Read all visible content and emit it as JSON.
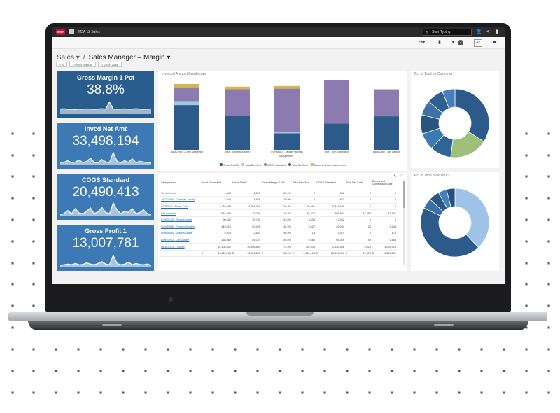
{
  "app": {
    "logo_text": "infor",
    "title": "M3A 12 Sales",
    "search_placeholder": "Start Typing"
  },
  "toolbar": {
    "filter_count": "2"
  },
  "breadcrumb": {
    "root": "Sales",
    "current": "Sales Manager – Margin"
  },
  "filters": [
    "< 5",
    "< Invcd Net Amt",
    "< 2019, 2018"
  ],
  "kpis": [
    {
      "title": "Gross Margin 1 Pct",
      "value": "38.8%",
      "color": "#2a5d8f",
      "spark": [
        0.3,
        0.32,
        0.28,
        0.3,
        0.27,
        0.3,
        0.29,
        0.31,
        0.3,
        0.28,
        0.3,
        0.32,
        0.3,
        0.85,
        0.3,
        0.28,
        0.3,
        0.31,
        0.29,
        0.3,
        0.32,
        0.3,
        0.28,
        0.3,
        0.3
      ]
    },
    {
      "title": "Invcd Net Amt",
      "value": "33,498,194",
      "color": "#3d7ab5",
      "spark": [
        0.1,
        0.12,
        0.25,
        0.1,
        0.15,
        0.3,
        0.1,
        0.2,
        0.45,
        0.12,
        0.1,
        0.35,
        0.15,
        0.1,
        0.9,
        0.2,
        0.1,
        0.25,
        0.12,
        0.4,
        0.1,
        0.2,
        0.15,
        0.1,
        0.1
      ]
    },
    {
      "title": "COGS Standard",
      "value": "20,490,413",
      "color": "#3d7ab5",
      "spark": [
        0.05,
        0.1,
        0.35,
        0.1,
        0.5,
        0.15,
        0.1,
        0.3,
        0.55,
        0.1,
        0.25,
        0.6,
        0.2,
        0.1,
        0.95,
        0.4,
        0.1,
        0.3,
        0.2,
        0.5,
        0.1,
        0.2,
        0.4,
        0.1,
        0.05
      ]
    },
    {
      "title": "Gross Profit 1",
      "value": "13,007,781",
      "color": "#3d7ab5",
      "spark": [
        0.05,
        0.1,
        0.15,
        0.1,
        0.2,
        0.1,
        0.12,
        0.25,
        0.15,
        0.1,
        0.2,
        0.35,
        0.15,
        0.1,
        0.85,
        0.2,
        0.1,
        0.15,
        0.3,
        0.1,
        0.2,
        0.12,
        0.1,
        0.15,
        0.05
      ]
    }
  ],
  "chart_data": [
    {
      "type": "bar",
      "title": "Invoiced Amount Breakdown",
      "xlabel": "Salesperson",
      "categories": [
        "AMAORES - Oreo Markevich",
        "DMA - Steve McQueen",
        "FORMAKS - Mikael Frisman",
        "HAY - Ron Stevens III",
        "LARLORD - Lori Larsen"
      ],
      "series": [
        {
          "name": "Gross Profit 2",
          "color": "#2c5a8a",
          "values": [
            68,
            52,
            25,
            40,
            51
          ]
        },
        {
          "name": "Total Disc Amt",
          "color": "#9ecae1",
          "values": [
            6,
            0,
            2,
            0,
            1
          ]
        },
        {
          "name": "COGS Standard",
          "color": "#8c7bb0",
          "values": [
            20,
            40,
            66,
            66,
            40
          ]
        },
        {
          "name": "Total Net Cost",
          "color": "#2c5a8a",
          "values": [
            0,
            0,
            0,
            0,
            0
          ]
        },
        {
          "name": "Bonus and Commission Amt",
          "color": "#d9b550",
          "values": [
            6,
            4,
            4,
            0,
            0
          ]
        }
      ]
    },
    {
      "type": "pie",
      "title": "Pct of Total by Customer",
      "values": [
        34,
        18,
        10,
        8,
        9,
        7,
        8,
        6
      ],
      "colors": [
        "#2c5a8a",
        "#9dbf7a",
        "#2f6496",
        "#3d7ab5",
        "#2a5480",
        "#3c72a8",
        "#2e5f92",
        "#4480bb"
      ]
    },
    {
      "type": "pie",
      "title": "Pct of Total by Product",
      "values": [
        38,
        44,
        5,
        5,
        4,
        4
      ],
      "colors": [
        "#9ec3e6",
        "#2c5a8a",
        "#3670a6",
        "#2b5887",
        "#4282bd",
        "#275080"
      ]
    }
  ],
  "table": {
    "headers": [
      "Salesperson",
      "Invcd Gross Amt",
      "Gross Profit 2",
      "Gross Margin 2 Pct",
      "Total Disc Amt",
      "COGS Standard",
      "Total Net Cost",
      "Bonus and Commission Amt"
    ],
    "rows": [
      [
        "No salesman",
        "1,863",
        "1,507",
        "80.9%",
        "0",
        "356",
        "0",
        "0"
      ],
      [
        "JACCYNN - Christian Jacobi",
        "2,340",
        "1,580",
        "70.9%",
        "0",
        "663",
        "0",
        "0"
      ],
      [
        "CATREIS - Eileen Cain",
        "2,153,683",
        "-4,958,376",
        "-210.2%",
        "75,691",
        "6,446,666",
        "0",
        "0"
      ],
      [
        "Not available",
        "518,282",
        "79,086",
        "15.4%",
        "46,476",
        "305,861",
        "47,856",
        "47,361"
      ],
      [
        "CONSEAS - Sean Conner",
        "90,531",
        "39,750",
        "43.6%",
        "3,339",
        "47,462",
        "0",
        "0"
      ],
      [
        "SUNTONE - Tommy Sundell",
        "149,618",
        "63,205",
        "42.2%",
        "3,327",
        "83,054",
        "24",
        "3,248"
      ],
      [
        "LENDDAN - Dianna Lewis",
        "5,929",
        "2,661",
        "48.9%",
        "15",
        "3,474",
        "0",
        "174"
      ],
      [
        "LARLORD - Lori Larsen",
        "158,562",
        "85,019",
        "55.5%",
        "5,680",
        "66,359",
        "40",
        "1,153"
      ],
      [
        "MAROREG - Greed",
        "15,308,601",
        "10,896,834",
        "74.9%",
        "752,330",
        "2,630,596",
        "9,825",
        "1,025,918"
      ]
    ],
    "totals": [
      "Σ",
      "34,640,294",
      "Σ",
      "11,345,803",
      "Σ",
      "33.9%",
      "Σ",
      "1,142,103",
      "Σ",
      "20,490,413",
      "Σ",
      "67,676",
      "Σ",
      "1,574,001"
    ]
  }
}
